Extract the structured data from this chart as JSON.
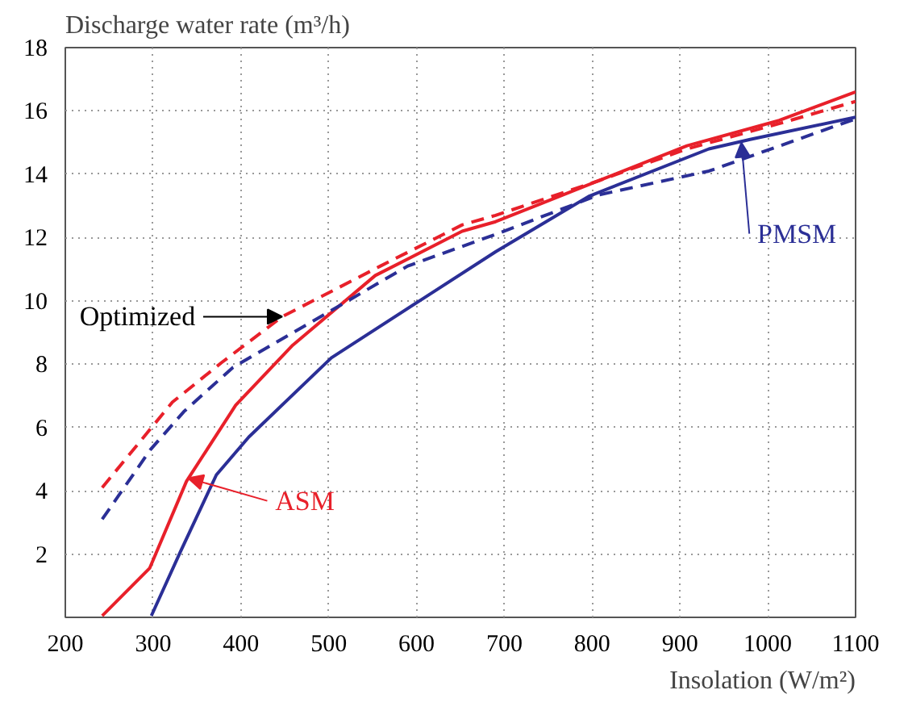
{
  "chart_data": {
    "type": "line",
    "xlabel": "Insolation (W/m²)",
    "ylabel": "Discharge water rate (m³/h)",
    "xlim": [
      200,
      1100
    ],
    "ylim": [
      0,
      18
    ],
    "xticks": [
      200,
      300,
      400,
      500,
      600,
      700,
      800,
      900,
      1000,
      1100
    ],
    "yticks": [
      2,
      4,
      6,
      8,
      10,
      12,
      14,
      16,
      18
    ],
    "grid": true,
    "series": [
      {
        "color": "#e8202a",
        "line_style": "solid",
        "x": [
          242,
          296,
          338,
          394,
          459,
          553,
          652,
          690,
          808,
          908,
          1013,
          1100
        ],
        "values": [
          0.05,
          1.55,
          4.3,
          6.7,
          8.6,
          10.8,
          12.2,
          12.5,
          13.8,
          14.9,
          15.7,
          16.6
        ]
      },
      {
        "color": "#e8202a",
        "line_style": "dashed",
        "x": [
          242,
          322,
          378,
          447,
          559,
          652,
          690,
          808,
          908,
          1013,
          1100
        ],
        "values": [
          4.1,
          6.8,
          8.05,
          9.5,
          11.1,
          12.4,
          12.7,
          13.8,
          14.8,
          15.6,
          16.3
        ]
      },
      {
        "color": "#2b2f96",
        "line_style": "solid",
        "x": [
          298,
          331,
          372,
          409,
          503,
          609,
          690,
          796,
          933,
          980,
          1100
        ],
        "values": [
          0.05,
          2.07,
          4.5,
          5.7,
          8.2,
          10.1,
          11.55,
          13.3,
          14.8,
          15.1,
          15.8
        ]
      },
      {
        "color": "#2b2f96",
        "line_style": "dashed",
        "x": [
          242,
          297,
          335,
          391,
          497,
          590,
          690,
          808,
          933,
          1100
        ],
        "values": [
          3.1,
          5.3,
          6.5,
          7.9,
          9.6,
          11.1,
          12.1,
          13.35,
          14.1,
          15.75
        ]
      }
    ],
    "annotations": [
      {
        "text": "Optimized",
        "x": 447,
        "y": 9.5
      },
      {
        "text": "ASM",
        "x": 340,
        "y": 4.4
      },
      {
        "text": "PMSM",
        "x": 970,
        "y": 15.0
      }
    ]
  }
}
